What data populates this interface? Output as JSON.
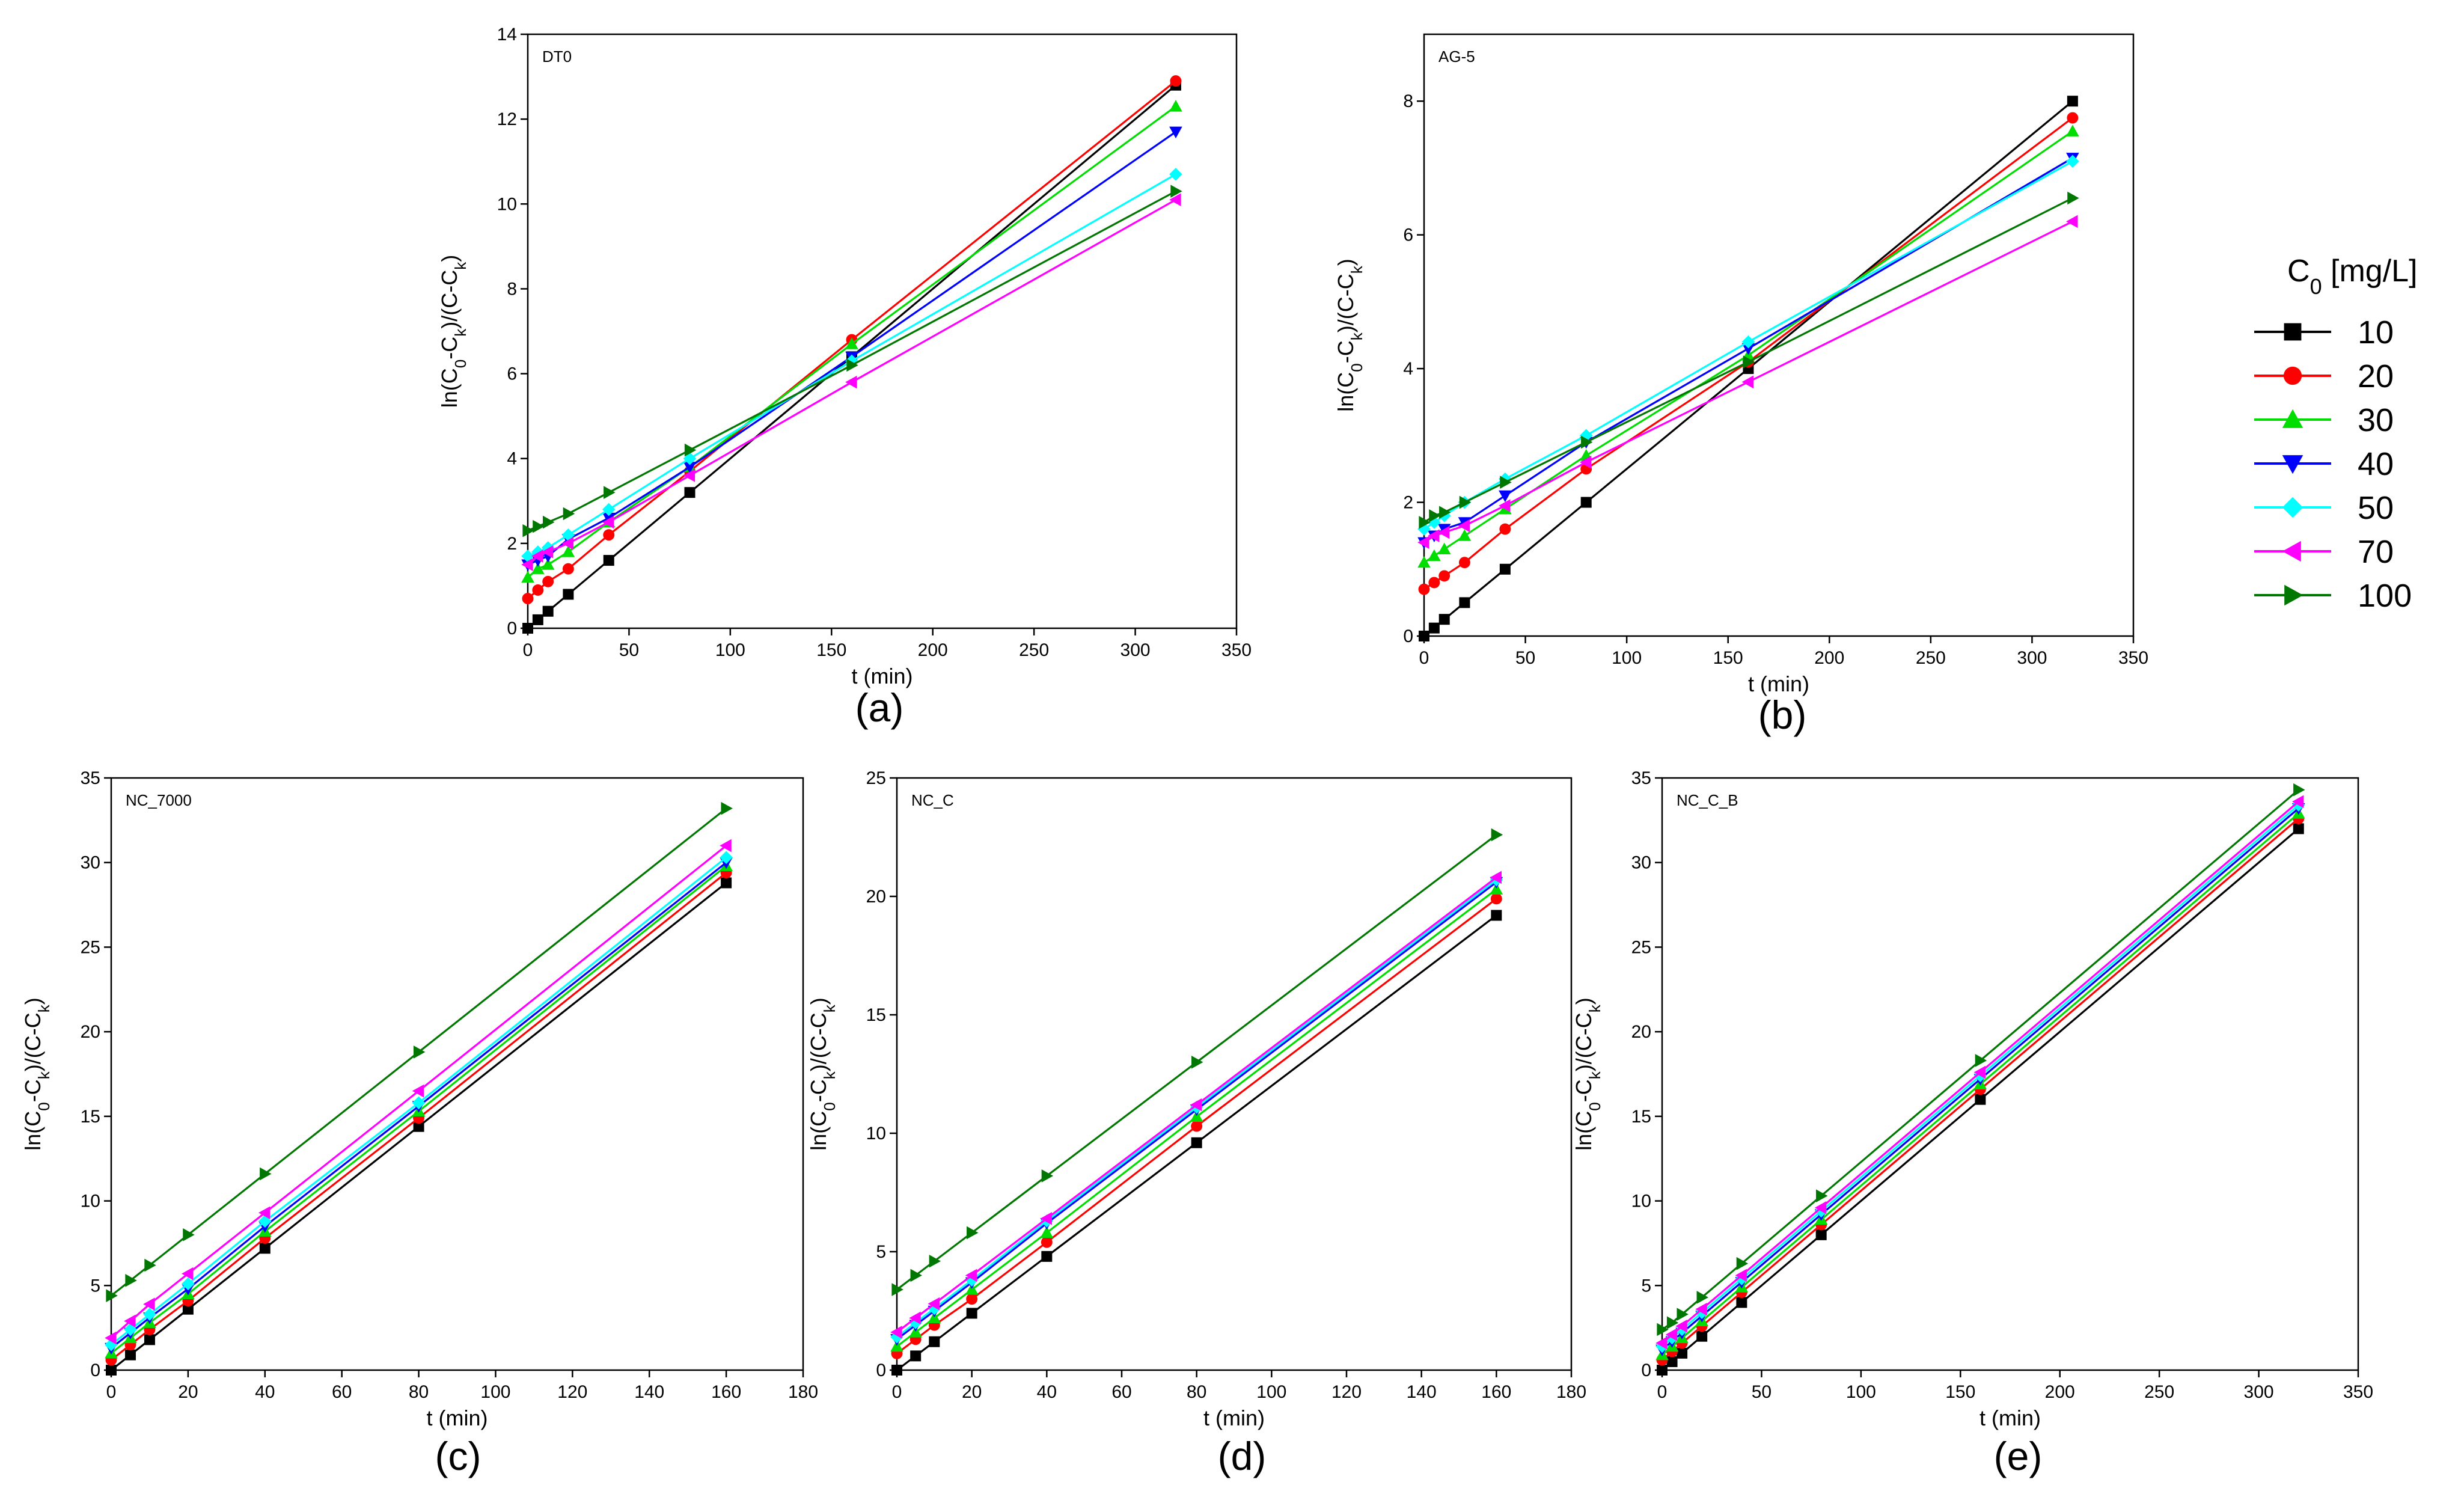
{
  "legend": {
    "title_main": "C",
    "title_sub": "0",
    "title_rest": " [mg/L]",
    "labels": [
      "10",
      "20",
      "30",
      "40",
      "50",
      "70",
      "100"
    ]
  },
  "series_style": [
    {
      "name": "10",
      "color": "#000000",
      "marker": "square"
    },
    {
      "name": "20",
      "color": "#ff0000",
      "marker": "circle"
    },
    {
      "name": "30",
      "color": "#00dd00",
      "marker": "triangle-up"
    },
    {
      "name": "40",
      "color": "#0000ff",
      "marker": "triangle-down"
    },
    {
      "name": "50",
      "color": "#00ffff",
      "marker": "diamond"
    },
    {
      "name": "70",
      "color": "#ff00ff",
      "marker": "triangle-left"
    },
    {
      "name": "100",
      "color": "#007700",
      "marker": "triangle-right"
    }
  ],
  "ylabel_parts": [
    "ln(C",
    "0",
    "-C",
    "k",
    ")/(C-C",
    "k",
    ")"
  ],
  "chart_data": [
    {
      "type": "line",
      "panel": "a",
      "title": "DT0",
      "caption": "(a)",
      "xlabel": "t (min)",
      "xlim": [
        0,
        350
      ],
      "ylim": [
        0,
        14
      ],
      "xticks": [
        0,
        50,
        100,
        150,
        200,
        250,
        300,
        350
      ],
      "yticks": [
        0,
        2,
        4,
        6,
        8,
        10,
        12,
        14
      ],
      "x": [
        0,
        5,
        10,
        20,
        40,
        80,
        160,
        320
      ],
      "series": [
        {
          "name": "10",
          "values": [
            0,
            0.2,
            0.4,
            0.8,
            1.6,
            3.2,
            6.4,
            12.8
          ]
        },
        {
          "name": "20",
          "values": [
            0.7,
            0.9,
            1.1,
            1.4,
            2.2,
            3.7,
            6.8,
            12.9
          ]
        },
        {
          "name": "30",
          "values": [
            1.2,
            1.4,
            1.5,
            1.8,
            2.5,
            3.8,
            6.7,
            12.3
          ]
        },
        {
          "name": "40",
          "values": [
            1.5,
            1.6,
            1.7,
            2.1,
            2.6,
            3.8,
            6.4,
            11.7
          ]
        },
        {
          "name": "50",
          "values": [
            1.7,
            1.8,
            1.9,
            2.2,
            2.8,
            4.0,
            6.3,
            10.7
          ]
        },
        {
          "name": "70",
          "values": [
            1.5,
            1.7,
            1.8,
            2.0,
            2.5,
            3.6,
            5.8,
            10.1
          ]
        },
        {
          "name": "100",
          "values": [
            2.3,
            2.4,
            2.5,
            2.7,
            3.2,
            4.2,
            6.2,
            10.3
          ]
        }
      ]
    },
    {
      "type": "line",
      "panel": "b",
      "title": "AG-5",
      "caption": "(b)",
      "xlabel": "t (min)",
      "xlim": [
        0,
        350
      ],
      "ylim": [
        0,
        9
      ],
      "xticks": [
        0,
        50,
        100,
        150,
        200,
        250,
        300,
        350
      ],
      "yticks": [
        0,
        2,
        4,
        6,
        8
      ],
      "x": [
        0,
        5,
        10,
        20,
        40,
        80,
        160,
        320
      ],
      "series": [
        {
          "name": "10",
          "values": [
            0,
            0.12,
            0.25,
            0.5,
            1.0,
            2.0,
            4.0,
            8.0
          ]
        },
        {
          "name": "20",
          "values": [
            0.7,
            0.8,
            0.9,
            1.1,
            1.6,
            2.5,
            4.1,
            7.75
          ]
        },
        {
          "name": "30",
          "values": [
            1.1,
            1.2,
            1.3,
            1.5,
            1.9,
            2.7,
            4.2,
            7.55
          ]
        },
        {
          "name": "40",
          "values": [
            1.4,
            1.5,
            1.6,
            1.7,
            2.1,
            2.9,
            4.3,
            7.15
          ]
        },
        {
          "name": "50",
          "values": [
            1.6,
            1.7,
            1.8,
            2.0,
            2.35,
            3.0,
            4.4,
            7.1
          ]
        },
        {
          "name": "70",
          "values": [
            1.4,
            1.5,
            1.55,
            1.65,
            1.95,
            2.6,
            3.8,
            6.2
          ]
        },
        {
          "name": "100",
          "values": [
            1.7,
            1.8,
            1.85,
            2.0,
            2.3,
            2.9,
            4.1,
            6.55
          ]
        }
      ]
    },
    {
      "type": "line",
      "panel": "c",
      "title": "NC_7000",
      "caption": "(c)",
      "xlabel": "t (min)",
      "xlim": [
        0,
        180
      ],
      "ylim": [
        0,
        35
      ],
      "xticks": [
        0,
        20,
        40,
        60,
        80,
        100,
        120,
        140,
        160,
        180
      ],
      "yticks": [
        0,
        5,
        10,
        15,
        20,
        25,
        30,
        35
      ],
      "x": [
        0,
        5,
        10,
        20,
        40,
        80,
        160
      ],
      "series": [
        {
          "name": "10",
          "values": [
            0,
            0.9,
            1.8,
            3.6,
            7.2,
            14.4,
            28.8
          ]
        },
        {
          "name": "20",
          "values": [
            0.6,
            1.5,
            2.4,
            4.1,
            7.8,
            14.9,
            29.4
          ]
        },
        {
          "name": "30",
          "values": [
            1.0,
            1.9,
            2.8,
            4.5,
            8.2,
            15.3,
            29.8
          ]
        },
        {
          "name": "40",
          "values": [
            1.3,
            2.2,
            3.1,
            4.8,
            8.5,
            15.6,
            30.0
          ]
        },
        {
          "name": "50",
          "values": [
            1.5,
            2.4,
            3.3,
            5.1,
            8.8,
            15.8,
            30.3
          ]
        },
        {
          "name": "70",
          "values": [
            1.9,
            2.9,
            3.9,
            5.7,
            9.3,
            16.5,
            31.0
          ]
        },
        {
          "name": "100",
          "values": [
            4.4,
            5.3,
            6.2,
            8.0,
            11.6,
            18.8,
            33.2
          ]
        }
      ]
    },
    {
      "type": "line",
      "panel": "d",
      "title": "NC_C",
      "caption": "(d)",
      "xlabel": "t (min)",
      "xlim": [
        0,
        180
      ],
      "ylim": [
        0,
        25
      ],
      "xticks": [
        0,
        20,
        40,
        60,
        80,
        100,
        120,
        140,
        160,
        180
      ],
      "yticks": [
        0,
        5,
        10,
        15,
        20,
        25
      ],
      "x": [
        0,
        5,
        10,
        20,
        40,
        80,
        160
      ],
      "series": [
        {
          "name": "10",
          "values": [
            0,
            0.6,
            1.2,
            2.4,
            4.8,
            9.6,
            19.2
          ]
        },
        {
          "name": "20",
          "values": [
            0.7,
            1.3,
            1.9,
            3.0,
            5.4,
            10.3,
            19.9
          ]
        },
        {
          "name": "30",
          "values": [
            1.0,
            1.6,
            2.2,
            3.4,
            5.8,
            10.7,
            20.3
          ]
        },
        {
          "name": "40",
          "values": [
            1.3,
            1.9,
            2.5,
            3.7,
            6.2,
            11.0,
            20.6
          ]
        },
        {
          "name": "50",
          "values": [
            1.4,
            2.0,
            2.6,
            3.8,
            6.3,
            11.1,
            20.7
          ]
        },
        {
          "name": "70",
          "values": [
            1.6,
            2.2,
            2.8,
            4.0,
            6.4,
            11.2,
            20.8
          ]
        },
        {
          "name": "100",
          "values": [
            3.4,
            4.0,
            4.6,
            5.8,
            8.2,
            13.0,
            22.6
          ]
        }
      ]
    },
    {
      "type": "line",
      "panel": "e",
      "title": "NC_C_B",
      "caption": "(e)",
      "xlabel": "t (min)",
      "xlim": [
        0,
        350
      ],
      "ylim": [
        0,
        35
      ],
      "xticks": [
        0,
        50,
        100,
        150,
        200,
        250,
        300,
        350
      ],
      "yticks": [
        0,
        5,
        10,
        15,
        20,
        25,
        30,
        35
      ],
      "x": [
        0,
        5,
        10,
        20,
        40,
        80,
        160,
        320
      ],
      "series": [
        {
          "name": "10",
          "values": [
            0,
            0.5,
            1.0,
            2.0,
            4.0,
            8.0,
            16.0,
            32.0
          ]
        },
        {
          "name": "20",
          "values": [
            0.6,
            1.1,
            1.6,
            2.6,
            4.6,
            8.6,
            16.6,
            32.6
          ]
        },
        {
          "name": "30",
          "values": [
            0.9,
            1.4,
            1.9,
            2.9,
            4.9,
            8.9,
            16.9,
            32.9
          ]
        },
        {
          "name": "40",
          "values": [
            1.2,
            1.7,
            2.2,
            3.2,
            5.2,
            9.2,
            17.2,
            33.2
          ]
        },
        {
          "name": "50",
          "values": [
            1.4,
            1.9,
            2.4,
            3.4,
            5.4,
            9.4,
            17.4,
            33.4
          ]
        },
        {
          "name": "70",
          "values": [
            1.6,
            2.1,
            2.6,
            3.6,
            5.6,
            9.6,
            17.6,
            33.6
          ]
        },
        {
          "name": "100",
          "values": [
            2.4,
            2.8,
            3.3,
            4.3,
            6.3,
            10.3,
            18.3,
            34.3
          ]
        }
      ]
    }
  ]
}
